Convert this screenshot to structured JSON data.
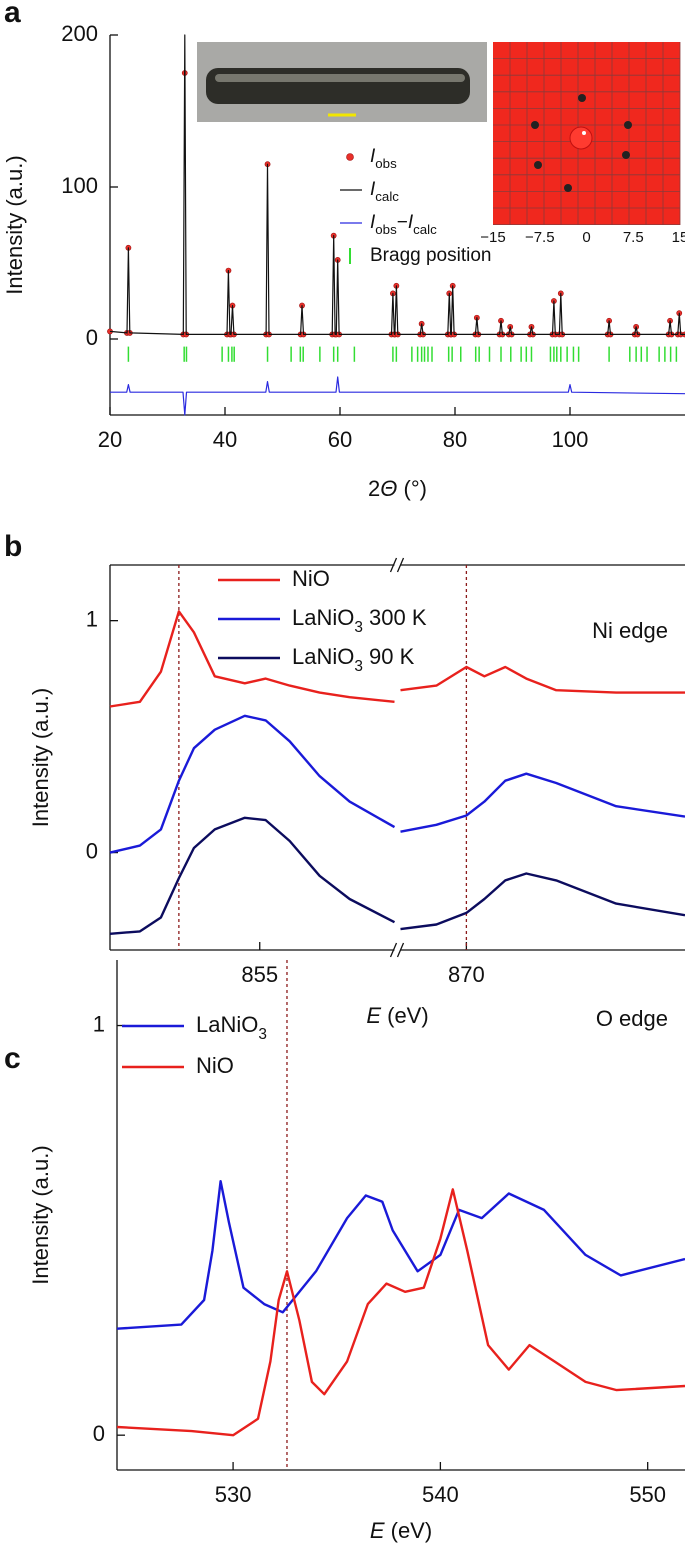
{
  "chart_data": [
    {
      "type": "line",
      "panel": "a",
      "xlabel": "2Θ (°)",
      "ylabel": "Intensity (a.u.)",
      "xlim": [
        20,
        120
      ],
      "ylim": [
        -50,
        200
      ],
      "xticks": [
        20,
        40,
        60,
        80,
        100
      ],
      "yticks": [
        0,
        100,
        200
      ],
      "x": [
        20,
        22.95,
        23.2,
        23.45,
        32.75,
        33,
        33.25,
        40.35,
        40.6,
        40.85,
        41.05,
        41.3,
        41.55,
        47.15,
        47.4,
        47.65,
        53.15,
        53.4,
        53.65,
        58.65,
        58.9,
        59.15,
        59.35,
        59.6,
        59.85,
        68.95,
        69.2,
        69.45,
        69.55,
        69.8,
        70.05,
        73.95,
        74.2,
        74.45,
        78.75,
        79,
        79.25,
        79.35,
        79.6,
        79.85,
        83.55,
        83.8,
        84.05,
        87.75,
        88,
        88.25,
        89.35,
        89.6,
        89.85,
        93.05,
        93.3,
        93.55,
        96.95,
        97.2,
        97.45,
        98.15,
        98.4,
        98.65,
        106.55,
        106.8,
        107.05,
        111.25,
        111.5,
        111.75,
        117.15,
        117.4,
        117.65,
        118.75,
        119,
        119.25,
        120
      ],
      "series": [
        {
          "name": "Iobs",
          "mode": "points",
          "color": "#e8302a",
          "values": [
            5,
            4,
            60,
            4,
            3,
            175,
            3,
            3,
            45,
            3,
            3,
            22,
            3,
            3,
            115,
            3,
            3,
            22,
            3,
            3,
            68,
            3,
            3,
            52,
            3,
            3,
            30,
            3,
            3,
            35,
            3,
            3,
            10,
            3,
            3,
            30,
            3,
            3,
            35,
            3,
            3,
            14,
            3,
            3,
            12,
            3,
            3,
            8,
            3,
            3,
            8,
            3,
            3,
            25,
            3,
            3,
            30,
            3,
            3,
            12,
            3,
            3,
            8,
            3,
            3,
            12,
            3,
            3,
            17,
            3,
            3
          ]
        },
        {
          "name": "Icalc",
          "mode": "line",
          "color": "#111111",
          "values": [
            5,
            4,
            60,
            4,
            3,
            200,
            3,
            3,
            45,
            3,
            3,
            22,
            3,
            3,
            115,
            3,
            3,
            22,
            3,
            3,
            68,
            3,
            3,
            52,
            3,
            3,
            30,
            3,
            3,
            35,
            3,
            3,
            10,
            3,
            3,
            30,
            3,
            3,
            35,
            3,
            3,
            14,
            3,
            3,
            12,
            3,
            3,
            8,
            3,
            3,
            8,
            3,
            3,
            25,
            3,
            3,
            30,
            3,
            3,
            12,
            3,
            3,
            8,
            3,
            3,
            12,
            3,
            3,
            17,
            3,
            3
          ]
        },
        {
          "name": "Iobs−Icalc",
          "mode": "line",
          "color": "#2a2ae0",
          "x": [
            20,
            22.9,
            23.2,
            23.5,
            32.7,
            33,
            33.3,
            47.1,
            47.4,
            47.7,
            59.3,
            59.6,
            59.9,
            99.7,
            100,
            100.3,
            120
          ],
          "values": [
            -35,
            -35,
            -30,
            -35,
            -35,
            -50,
            -35,
            -35,
            -28,
            -35,
            -35,
            -25,
            -35,
            -35,
            -30,
            -35,
            -36
          ]
        },
        {
          "name": "Bragg position",
          "mode": "ticks",
          "color": "#33dd33",
          "x": [
            23.2,
            32.9,
            33.3,
            39.5,
            40.6,
            41.2,
            41.6,
            47.4,
            51.5,
            53.1,
            53.6,
            56.5,
            58.9,
            59.6,
            62.5,
            69.2,
            69.8,
            72.5,
            73.5,
            74.2,
            74.7,
            75.3,
            76,
            78.9,
            79.5,
            81,
            83.6,
            84.2,
            86,
            88,
            89.7,
            91.5,
            92.4,
            93.3,
            96.6,
            97.2,
            97.7,
            98.4,
            99.5,
            100.6,
            101.5,
            106.8,
            110.4,
            111.5,
            112.4,
            113.4,
            115.5,
            116.5,
            117.5,
            118.5
          ]
        }
      ],
      "inset": {
        "xlim": [
          -15,
          15
        ],
        "xticks": [
          {
            "value": -15,
            "label": "−15"
          },
          {
            "value": -7.5,
            "label": "−7.5"
          },
          0,
          7.5,
          15
        ]
      }
    },
    {
      "type": "line",
      "panel": "b",
      "xlabel": "E (eV)",
      "ylabel": "Intensity (a.u.)",
      "annotation": "Ni edge",
      "xlim": [
        850,
        877.3
      ],
      "xbreak": [
        859.5,
        867.8
      ],
      "ylim": [
        -0.42,
        1.24
      ],
      "xticks": [
        855,
        870
      ],
      "yticks": [
        0,
        1
      ],
      "vlines": [
        852.3,
        870
      ],
      "x": [
        850,
        851,
        851.7,
        852.3,
        852.8,
        853.5,
        854.5,
        855.2,
        856,
        857,
        858,
        859.5,
        863,
        867.8,
        869,
        870,
        870.6,
        871.3,
        872,
        873,
        875,
        877.3
      ],
      "series": [
        {
          "name": "NiO",
          "mode": "line",
          "color": "#e8211d",
          "values": [
            0.63,
            0.65,
            0.78,
            1.04,
            0.95,
            0.76,
            0.73,
            0.75,
            0.72,
            0.69,
            0.67,
            0.65,
            null,
            0.7,
            0.72,
            0.8,
            0.76,
            0.8,
            0.75,
            0.7,
            0.69,
            0.69
          ]
        },
        {
          "name": "LaNiO3 300 K",
          "mode": "line",
          "color": "#1a1ad8",
          "values": [
            0.0,
            0.03,
            0.1,
            0.31,
            0.45,
            0.53,
            0.59,
            0.57,
            0.48,
            0.33,
            0.22,
            0.11,
            null,
            0.09,
            0.12,
            0.16,
            0.22,
            0.31,
            0.34,
            0.3,
            0.2,
            0.155
          ]
        },
        {
          "name": "LaNiO3 90 K",
          "mode": "line",
          "color": "#0c0c5e",
          "values": [
            -0.35,
            -0.34,
            -0.28,
            -0.11,
            0.02,
            0.1,
            0.15,
            0.14,
            0.05,
            -0.1,
            -0.2,
            -0.3,
            null,
            -0.33,
            -0.31,
            -0.26,
            -0.2,
            -0.12,
            -0.09,
            -0.12,
            -0.22,
            -0.27
          ]
        }
      ]
    },
    {
      "type": "line",
      "panel": "c",
      "xlabel": "E (eV)",
      "ylabel": "Intensity (a.u.)",
      "annotation": "O edge",
      "xlim": [
        524.4,
        551.8
      ],
      "ylim": [
        -0.085,
        1.16
      ],
      "xticks": [
        530,
        540,
        550
      ],
      "yticks": [
        0,
        1
      ],
      "vlines": [
        532.6
      ],
      "series": [
        {
          "name": "LaNiO3",
          "mode": "line",
          "color": "#1a1ad8",
          "x": [
            524.4,
            527.5,
            528.6,
            529,
            529.4,
            529.8,
            530.5,
            531.5,
            532.4,
            534,
            535.5,
            536.4,
            537.2,
            537.7,
            538.9,
            540,
            540.9,
            542,
            543.3,
            545,
            547,
            548.7,
            551.8
          ],
          "values": [
            0.26,
            0.27,
            0.33,
            0.45,
            0.62,
            0.52,
            0.36,
            0.32,
            0.3,
            0.4,
            0.53,
            0.585,
            0.57,
            0.5,
            0.4,
            0.44,
            0.55,
            0.53,
            0.59,
            0.55,
            0.44,
            0.39,
            0.43
          ]
        },
        {
          "name": "NiO",
          "mode": "line",
          "color": "#e8211d",
          "x": [
            524.4,
            528,
            530,
            531.2,
            531.8,
            532.2,
            532.6,
            533.2,
            533.8,
            534.4,
            535.5,
            536.5,
            537.4,
            538.3,
            539.2,
            540,
            540.6,
            541.3,
            542.3,
            543.3,
            544.3,
            545.5,
            547,
            548.5,
            551.8
          ],
          "values": [
            0.02,
            0.01,
            0,
            0.04,
            0.18,
            0.33,
            0.4,
            0.28,
            0.13,
            0.1,
            0.18,
            0.32,
            0.37,
            0.35,
            0.36,
            0.48,
            0.6,
            0.45,
            0.22,
            0.16,
            0.22,
            0.18,
            0.13,
            0.11,
            0.12
          ]
        }
      ]
    }
  ]
}
